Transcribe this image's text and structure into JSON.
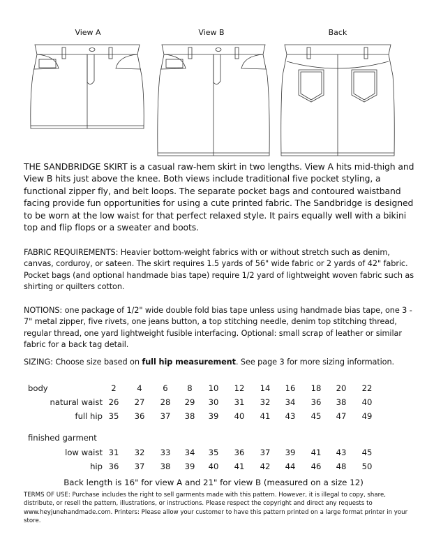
{
  "views": {
    "a": "View A",
    "b": "View B",
    "back": "Back"
  },
  "description": "THE SANDBRIDGE SKIRT is a casual raw-hem skirt in two lengths.  View A hits mid-thigh and View B hits just above the knee.  Both views include traditional five pocket styling, a functional zipper fly, and belt loops.  The separate pocket bags and contoured waistband facing provide fun opportunities for using a cute printed fabric.  The Sandbridge is designed to be worn at the low waist for that perfect relaxed style.  It pairs equally well with a bikini top and flip flops or a sweater and boots.",
  "fabric": "FABRIC REQUIREMENTS:  Heavier bottom-weight fabrics with or without stretch such as denim, canvas, corduroy, or sateen.  The skirt requires 1.5 yards of 56\" wide fabric or 2 yards of 42\" fabric.  Pocket bags (and optional handmade bias tape) require 1/2 yard of lightweight woven fabric such as shirting or quilters cotton.",
  "notions": "NOTIONS: one package of 1/2\" wide double fold bias tape unless using handmade bias tape, one 3 - 7\" metal zipper, five rivets, one jeans button, a top stitching needle, denim top stitching thread, regular thread, one yard lightweight fusible interfacing.  Optional: small scrap of leather or similar fabric for a back tag detail.",
  "sizing": {
    "prefix": "SIZING: Choose size based on ",
    "bold": "full hip measurement",
    "suffix": ".  See page 3 for more sizing information."
  },
  "table": {
    "body_label": "body",
    "sizes": [
      "2",
      "4",
      "6",
      "8",
      "10",
      "12",
      "14",
      "16",
      "18",
      "20",
      "22"
    ],
    "body_rows": [
      {
        "label": "natural waist",
        "values": [
          "26",
          "27",
          "28",
          "29",
          "30",
          "31",
          "32",
          "34",
          "36",
          "38",
          "40"
        ]
      },
      {
        "label": "full hip",
        "values": [
          "35",
          "36",
          "37",
          "38",
          "39",
          "40",
          "41",
          "43",
          "45",
          "47",
          "49"
        ]
      }
    ],
    "garment_label": "finished garment",
    "garment_rows": [
      {
        "label": "low waist",
        "values": [
          "31",
          "32",
          "33",
          "34",
          "35",
          "36",
          "37",
          "39",
          "41",
          "43",
          "45"
        ]
      },
      {
        "label": "hip",
        "values": [
          "36",
          "37",
          "38",
          "39",
          "40",
          "41",
          "42",
          "44",
          "46",
          "48",
          "50"
        ]
      }
    ]
  },
  "back_length": "Back length is 16\" for view A and 21\" for view B (measured on a size 12)",
  "terms": "TERMS OF USE:  Purchase includes the right to sell garments made with this pattern.  However, it is illegal to copy, share, distribute, or resell the pattern, illustrations, or instructions.  Please respect the copyright and direct any requests to www.heyjunehandmade.com.  Printers: Please allow your customer to have this pattern printed on a large format printer in your store."
}
